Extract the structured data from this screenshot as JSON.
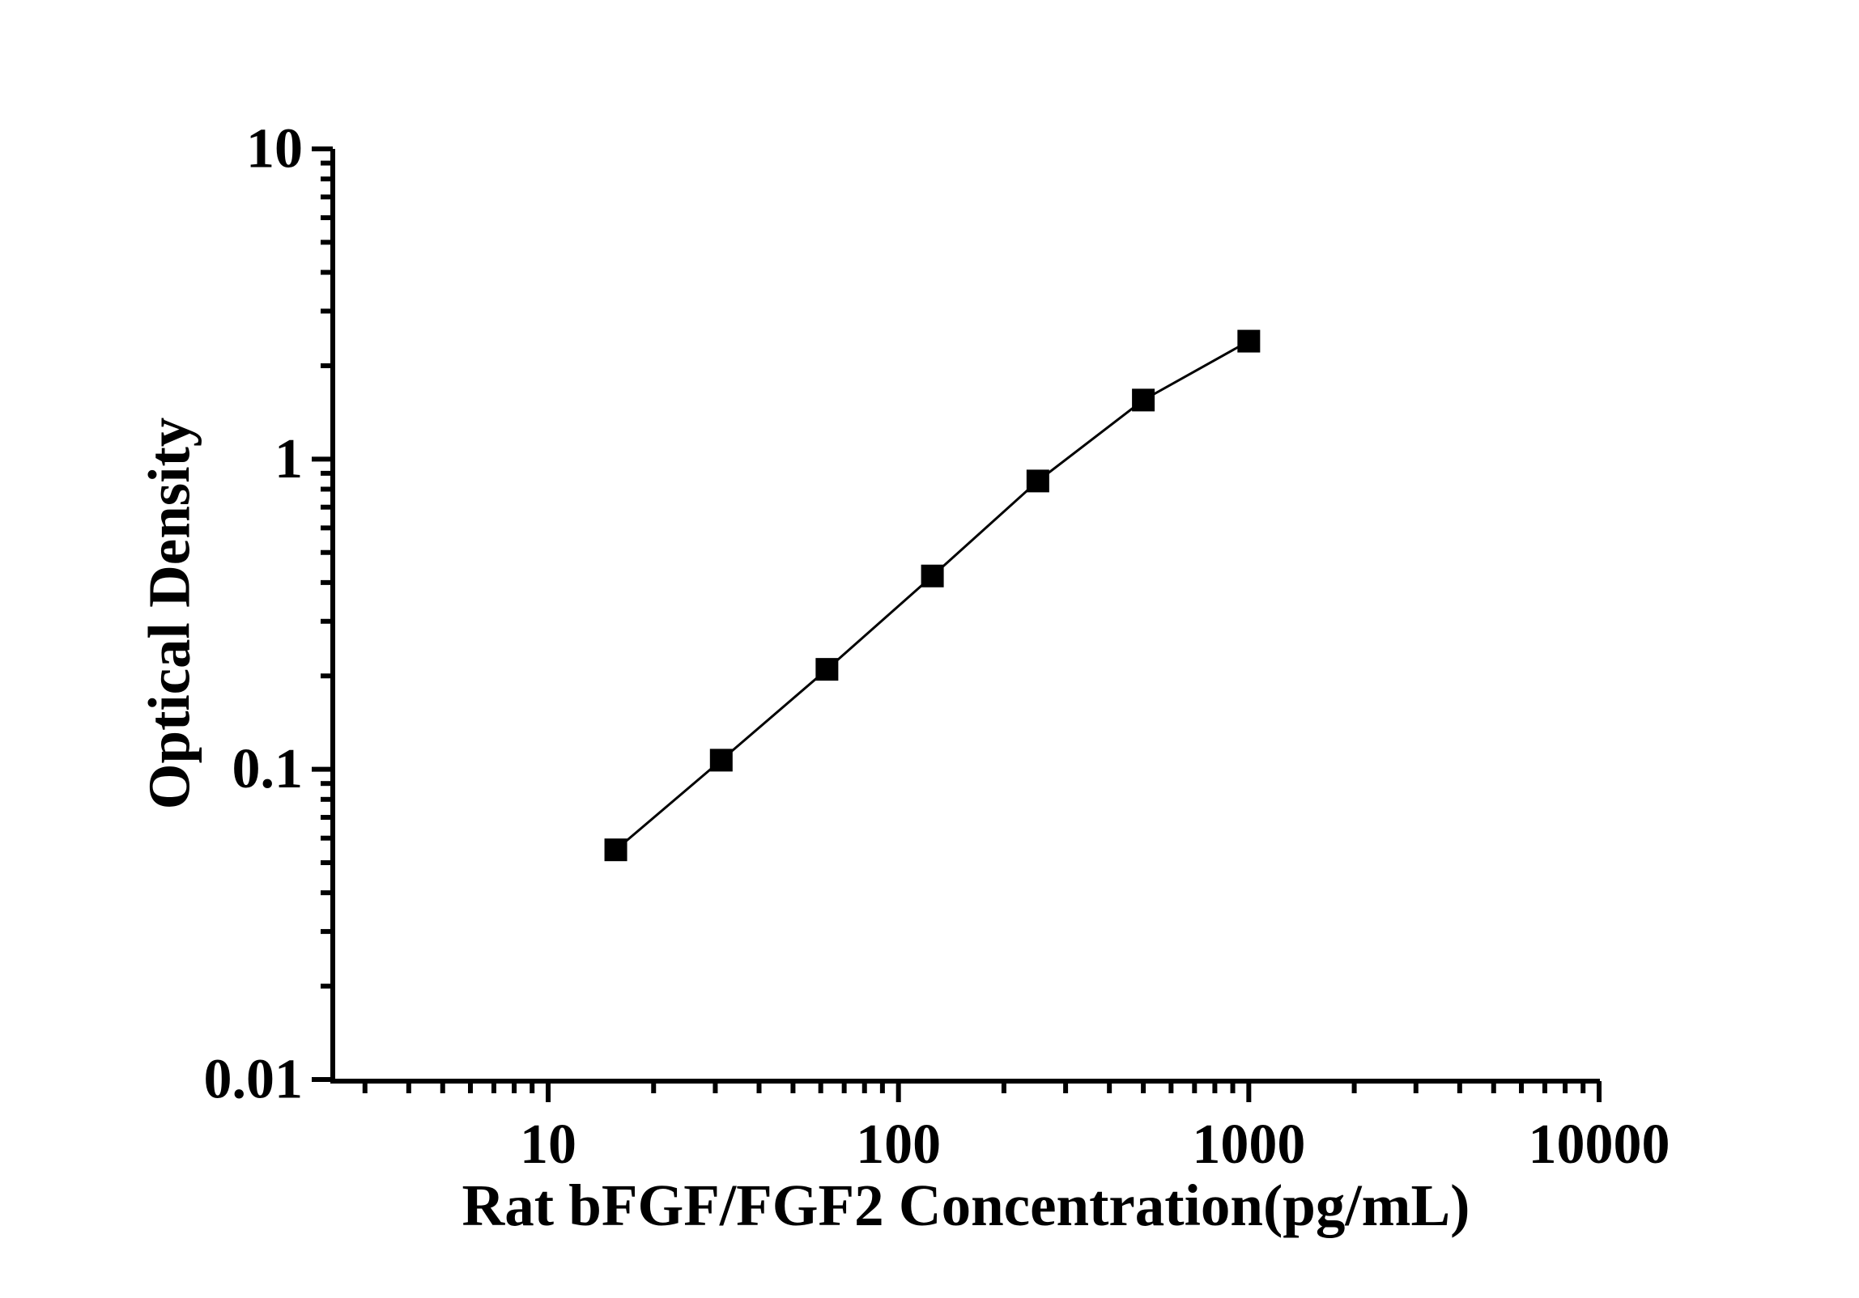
{
  "figure": {
    "background_color": "#ffffff",
    "ink_color": "#000000"
  },
  "chart_data": {
    "type": "line",
    "title": "",
    "xlabel": "Rat bFGF/FGF2 Concentration(pg/mL)",
    "ylabel": "Optical Density",
    "x_scale": "log",
    "y_scale": "log",
    "xlim": [
      2.5,
      10000
    ],
    "ylim": [
      0.01,
      10
    ],
    "grid": false,
    "legend": false,
    "marker_style": "filled-square",
    "line_color": "#000000",
    "marker_color": "#000000",
    "x_ticks": [
      {
        "value": 10,
        "label": "10"
      },
      {
        "value": 100,
        "label": "100"
      },
      {
        "value": 1000,
        "label": "1000"
      },
      {
        "value": 10000,
        "label": "10000"
      }
    ],
    "y_ticks": [
      {
        "value": 10,
        "label": "10"
      },
      {
        "value": 1,
        "label": "1"
      },
      {
        "value": 0.1,
        "label": "0.1"
      },
      {
        "value": 0.01,
        "label": "0.01"
      }
    ],
    "series": [
      {
        "name": "standard-curve",
        "x": [
          15.6,
          31.2,
          62.5,
          125,
          250,
          500,
          1000
        ],
        "y": [
          0.055,
          0.107,
          0.21,
          0.42,
          0.85,
          1.55,
          2.4
        ]
      }
    ]
  }
}
